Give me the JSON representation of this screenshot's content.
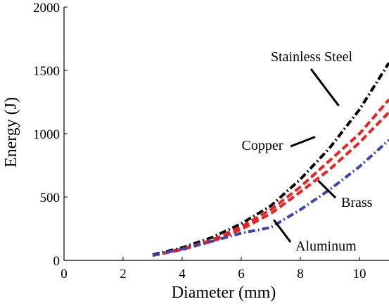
{
  "chart_data": {
    "type": "line",
    "xlabel": "Diameter (mm)",
    "ylabel": "Energy (J)",
    "xlim": [
      0,
      11
    ],
    "ylim": [
      0,
      2000
    ],
    "x_ticks": [
      0,
      2,
      4,
      6,
      8,
      10
    ],
    "y_ticks": [
      0,
      500,
      1000,
      1500,
      2000
    ],
    "x_tick_labels": [
      "0",
      "2",
      "4",
      "6",
      "8",
      "10"
    ],
    "y_tick_labels": [
      "0",
      "500",
      "1000",
      "1500",
      "2000"
    ],
    "grid": false,
    "legend": "none",
    "series": [
      {
        "name": "Stainless Steel",
        "color": "#000000",
        "dash": "dashdot",
        "x": [
          3,
          4,
          5,
          6,
          7,
          8,
          9,
          10,
          11
        ],
        "y": [
          45,
          100,
          180,
          290,
          430,
          640,
          890,
          1190,
          1560
        ]
      },
      {
        "name": "Copper",
        "color": "#e8221f",
        "dash": "dashed",
        "x": [
          3,
          4,
          5,
          6,
          7,
          8,
          9,
          10,
          11
        ],
        "y": [
          40,
          90,
          160,
          265,
          400,
          580,
          790,
          1000,
          1270
        ]
      },
      {
        "name": "Brass",
        "color": "#e8221f",
        "dash": "dashed",
        "x": [
          3,
          4,
          5,
          6,
          7,
          8,
          9,
          10,
          11
        ],
        "y": [
          38,
          85,
          150,
          245,
          370,
          540,
          720,
          930,
          1170
        ]
      },
      {
        "name": "Aluminum",
        "color": "#3a46b0",
        "dash": "dashdot",
        "x": [
          3,
          4,
          5,
          6,
          7,
          8,
          9,
          10,
          11
        ],
        "y": [
          40,
          90,
          150,
          215,
          260,
          400,
          560,
          740,
          950
        ]
      }
    ],
    "annotations": [
      {
        "text": "Stainless Steel",
        "series": "Stainless Steel",
        "point": [
          9.3,
          1220
        ]
      },
      {
        "text": "Copper",
        "series": "Copper",
        "point": [
          8.5,
          975
        ]
      },
      {
        "text": "Brass",
        "series": "Brass",
        "point": [
          8.6,
          630
        ]
      },
      {
        "text": "Aluminum",
        "series": "Aluminum",
        "point": [
          7.1,
          320
        ]
      }
    ]
  }
}
